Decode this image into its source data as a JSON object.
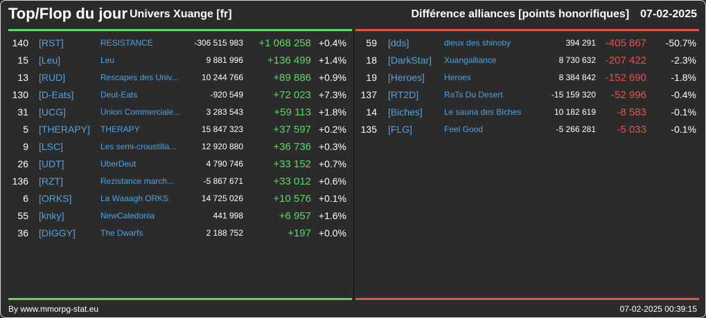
{
  "header": {
    "title": "Top/Flop du jour",
    "universe": "Univers Xuange [fr]",
    "subtitle": "Différence alliances [points honorifiques]",
    "date": "07-02-2025"
  },
  "colors": {
    "positive": "#5bd86a",
    "negative": "#e2534e",
    "link": "#4fa3e0",
    "background": "#2b2b2b"
  },
  "top": [
    {
      "rank": "140",
      "tag": "[RST]",
      "name": "RESISTANCE",
      "total": "-306 515 983",
      "diff": "+1 068 258",
      "pct": "+0.4%"
    },
    {
      "rank": "15",
      "tag": "[Leu]",
      "name": "Leu",
      "total": "9 881 996",
      "diff": "+136 499",
      "pct": "+1.4%"
    },
    {
      "rank": "13",
      "tag": "[RUD]",
      "name": "Rescapes des Univ...",
      "total": "10 244 766",
      "diff": "+89 886",
      "pct": "+0.9%"
    },
    {
      "rank": "130",
      "tag": "[D-Eats]",
      "name": "Deut-Eats",
      "total": "-920 549",
      "diff": "+72 023",
      "pct": "+7.3%"
    },
    {
      "rank": "31",
      "tag": "[UCG]",
      "name": "Union Commerciale...",
      "total": "3 283 543",
      "diff": "+59 113",
      "pct": "+1.8%"
    },
    {
      "rank": "5",
      "tag": "[THERAPY]",
      "name": "THERAPY",
      "total": "15 847 323",
      "diff": "+37 597",
      "pct": "+0.2%"
    },
    {
      "rank": "9",
      "tag": "[LSC]",
      "name": "Les semi-croustilla...",
      "total": "12 920 880",
      "diff": "+36 736",
      "pct": "+0.3%"
    },
    {
      "rank": "26",
      "tag": "[UDT]",
      "name": "UberDeut",
      "total": "4 790 746",
      "diff": "+33 152",
      "pct": "+0.7%"
    },
    {
      "rank": "136",
      "tag": "[RZT]",
      "name": "Rezistance march...",
      "total": "-5 867 671",
      "diff": "+33 012",
      "pct": "+0.6%"
    },
    {
      "rank": "6",
      "tag": "[ORKS]",
      "name": "La Waaagh ORKS",
      "total": "14 725 026",
      "diff": "+10 576",
      "pct": "+0.1%"
    },
    {
      "rank": "55",
      "tag": "[knky]",
      "name": "NewCaledonia",
      "total": "441 998",
      "diff": "+6 957",
      "pct": "+1.6%"
    },
    {
      "rank": "36",
      "tag": "[DIGGY]",
      "name": "The Dwarfs",
      "total": "2 188 752",
      "diff": "+197",
      "pct": "+0.0%"
    }
  ],
  "flop": [
    {
      "rank": "59",
      "tag": "[dds]",
      "name": "dieux des shinoby",
      "total": "394 291",
      "diff": "-405 867",
      "pct": "-50.7%"
    },
    {
      "rank": "18",
      "tag": "[DarkStar]",
      "name": "Xuangalliance",
      "total": "8 730 632",
      "diff": "-207 422",
      "pct": "-2.3%"
    },
    {
      "rank": "19",
      "tag": "[Heroes]",
      "name": "Heroes",
      "total": "8 384 842",
      "diff": "-152 690",
      "pct": "-1.8%"
    },
    {
      "rank": "137",
      "tag": "[RT2D]",
      "name": "RaTs Du Desert",
      "total": "-15 159 320",
      "diff": "-52 996",
      "pct": "-0.4%"
    },
    {
      "rank": "14",
      "tag": "[Biches]",
      "name": "Le sauna des Biches",
      "total": "10 182 619",
      "diff": "-8 583",
      "pct": "-0.1%"
    },
    {
      "rank": "135",
      "tag": "[FLG]",
      "name": "Feel Good",
      "total": "-5 266 281",
      "diff": "-5 033",
      "pct": "-0.1%"
    }
  ],
  "footer": {
    "credit": "By www.mmorpg-stat.eu",
    "timestamp": "07-02-2025 00:39:15"
  }
}
